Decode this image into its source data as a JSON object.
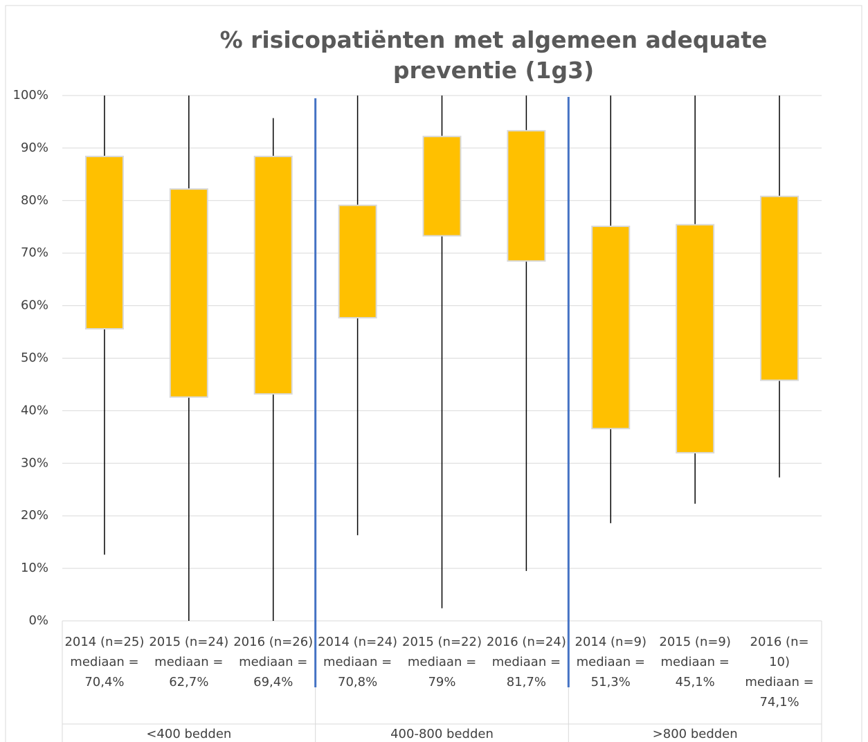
{
  "chart_data": {
    "type": "boxplot",
    "title": "% risicopatiënten met algemeen adequate preventie (1g3)",
    "categories": [
      [
        "2014 (n=25)",
        "mediaan =",
        "70,4%"
      ],
      [
        "2015 (n=24)",
        "mediaan =",
        "62,7%"
      ],
      [
        "2016 (n=26)",
        "mediaan =",
        "69,4%"
      ],
      [
        "2014 (n=24)",
        "mediaan =",
        "70,8%"
      ],
      [
        "2015 (n=22)",
        "mediaan =",
        "79%"
      ],
      [
        "2016 (n=24)",
        "mediaan =",
        "81,7%"
      ],
      [
        "2014 (n=9)",
        "mediaan =",
        "51,3%"
      ],
      [
        "2015 (n=9)",
        "mediaan =",
        "45,1%"
      ],
      [
        "2016 (n=",
        "10)",
        "mediaan =",
        "74,1%"
      ]
    ],
    "groups": [
      "<400 bedden",
      "400-800 bedden",
      ">800 bedden"
    ],
    "min": [
      12.6,
      0,
      0,
      16.3,
      2.4,
      9.5,
      18.6,
      22.3,
      27.3
    ],
    "q1": [
      55.6,
      42.6,
      43.2,
      57.7,
      73.3,
      68.5,
      36.6,
      32.0,
      45.8
    ],
    "q3": [
      88.4,
      82.2,
      88.4,
      79.1,
      92.2,
      93.3,
      75.1,
      75.4,
      80.8
    ],
    "max": [
      100,
      100,
      95.7,
      100,
      100,
      100,
      100,
      100,
      100
    ],
    "color": "#ffc000",
    "ylim": [
      0,
      100
    ],
    "yticks": [
      {
        "value": 0,
        "label": "0%"
      },
      {
        "value": 10,
        "label": "10%"
      },
      {
        "value": 20,
        "label": "20%"
      },
      {
        "value": 30,
        "label": "30%"
      },
      {
        "value": 40,
        "label": "40%"
      },
      {
        "value": 50,
        "label": "50%"
      },
      {
        "value": 60,
        "label": "60%"
      },
      {
        "value": 70,
        "label": "70%"
      },
      {
        "value": 80,
        "label": "80%"
      },
      {
        "value": 90,
        "label": "90%"
      },
      {
        "value": 100,
        "label": "100%"
      }
    ],
    "grid": true
  }
}
